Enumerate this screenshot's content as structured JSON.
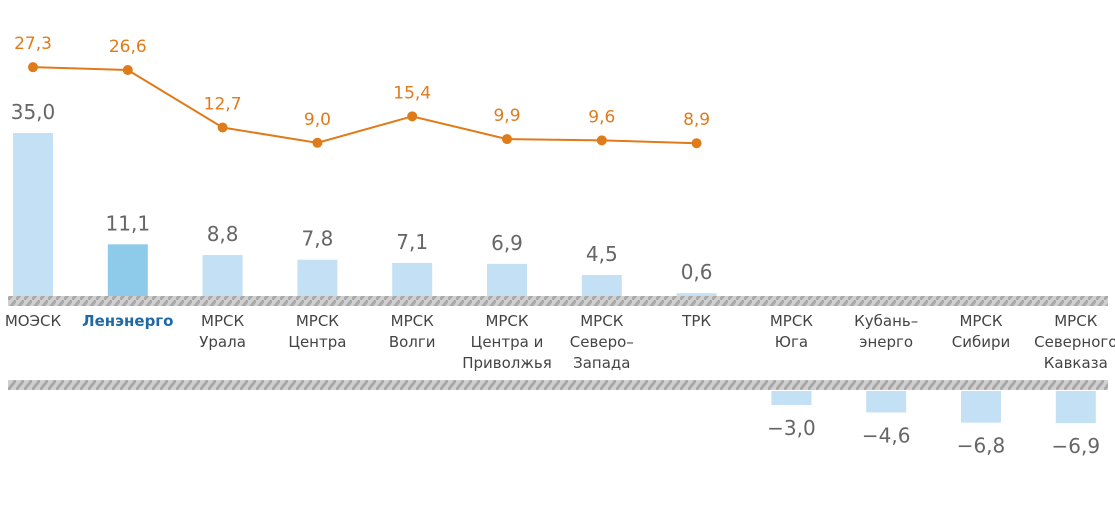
{
  "chart_data": {
    "type": "bar",
    "categories": [
      "МОЭСК",
      "Ленэнерго",
      "МРСК\nУрала",
      "МРСК\nЦентра",
      "МРСК\nВолги",
      "МРСК\nЦентра и\nПриволжья",
      "МРСК\nСеверо–\nЗапада",
      "ТРК",
      "МРСК\nЮга",
      "Кубань–\nэнерго",
      "МРСК\nСибири",
      "МРСК\nСеверного\nКавказа"
    ],
    "ylim": [
      0,
      35
    ],
    "y2lim": [
      0,
      30
    ],
    "highlight_index": 1,
    "highlight_color": "#1f6aa5",
    "series": [
      {
        "color": "#c3e0f5",
        "highlight_color": "#8ecbea",
        "values": [
          35.0,
          11.1,
          8.8,
          7.8,
          7.1,
          6.9,
          4.5,
          0.6,
          -3.0,
          -4.6,
          -6.8,
          -6.9
        ],
        "value_labels": [
          "35,0",
          "11,1",
          "8,8",
          "7,8",
          "7,1",
          "6,9",
          "4,5",
          "0,6",
          "−3,0",
          "−4,6",
          "−6,8",
          "−6,9"
        ]
      },
      {
        "type": "line",
        "axis": "y2",
        "color": "#e07b1a",
        "values": [
          27.3,
          26.6,
          12.7,
          9.0,
          15.4,
          9.9,
          9.6,
          8.9,
          null,
          null,
          null,
          null
        ],
        "value_labels": [
          "27,3",
          "26,6",
          "12,7",
          "9,0",
          "15,4",
          "9,9",
          "9,6",
          "8,9",
          null,
          null,
          null,
          null
        ]
      }
    ]
  }
}
